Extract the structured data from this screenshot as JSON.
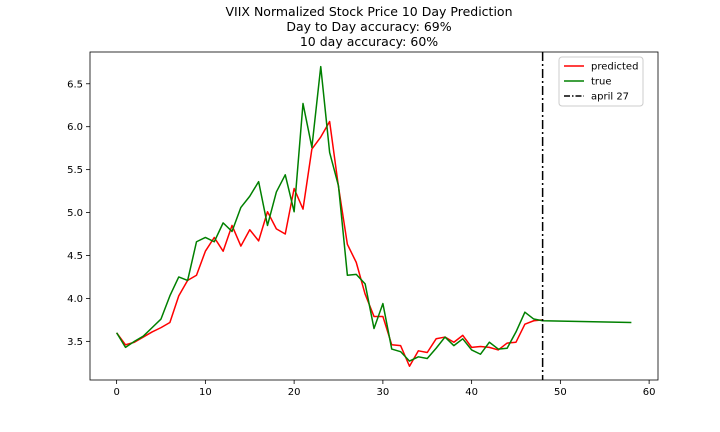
{
  "chart_data": {
    "type": "line",
    "title": "VIIX Normalized Stock Price 10 Day Prediction",
    "subtitle_lines": [
      "Day to Day accuracy: 69%",
      "10 day accuracy: 60%"
    ],
    "xlabel": "",
    "ylabel": "",
    "xlim": [
      -3,
      61
    ],
    "ylim": [
      3.05,
      6.87
    ],
    "x_ticks": [
      0,
      10,
      20,
      30,
      40,
      50,
      60
    ],
    "y_ticks": [
      3.5,
      4.0,
      4.5,
      5.0,
      5.5,
      6.0,
      6.5
    ],
    "grid": false,
    "legend_position": "top-right",
    "series": [
      {
        "name": "predicted",
        "color": "#ff0000",
        "x": [
          0,
          1,
          2,
          3,
          4,
          5,
          6,
          7,
          8,
          9,
          10,
          11,
          12,
          13,
          14,
          15,
          16,
          17,
          18,
          19,
          20,
          21,
          22,
          23,
          24,
          25,
          26,
          27,
          28,
          29,
          30,
          31,
          32,
          33,
          34,
          35,
          36,
          37,
          38,
          39,
          40,
          41,
          42,
          43,
          44,
          45,
          46,
          47,
          48
        ],
        "y": [
          3.6,
          3.46,
          3.49,
          3.55,
          3.61,
          3.66,
          3.72,
          4.03,
          4.21,
          4.27,
          4.55,
          4.71,
          4.55,
          4.85,
          4.61,
          4.8,
          4.67,
          5.01,
          4.81,
          4.75,
          5.28,
          5.04,
          5.74,
          5.88,
          6.06,
          5.3,
          4.63,
          4.42,
          4.05,
          3.79,
          3.79,
          3.46,
          3.45,
          3.21,
          3.39,
          3.37,
          3.53,
          3.55,
          3.49,
          3.57,
          3.43,
          3.44,
          3.43,
          3.4,
          3.48,
          3.49,
          3.7,
          3.74,
          3.75
        ]
      },
      {
        "name": "true",
        "color": "#008000",
        "x": [
          0,
          1,
          2,
          3,
          4,
          5,
          6,
          7,
          8,
          9,
          10,
          11,
          12,
          13,
          14,
          15,
          16,
          17,
          18,
          19,
          20,
          21,
          22,
          23,
          24,
          25,
          26,
          27,
          28,
          29,
          30,
          31,
          32,
          33,
          34,
          35,
          36,
          37,
          38,
          39,
          40,
          41,
          42,
          43,
          44,
          45,
          46,
          47,
          48,
          58
        ],
        "y": [
          3.6,
          3.43,
          3.5,
          3.56,
          3.66,
          3.76,
          4.03,
          4.25,
          4.21,
          4.66,
          4.71,
          4.66,
          4.88,
          4.78,
          5.06,
          5.19,
          5.36,
          4.85,
          5.24,
          5.44,
          5.01,
          6.27,
          5.76,
          6.7,
          5.7,
          5.31,
          4.27,
          4.28,
          4.17,
          3.65,
          3.94,
          3.41,
          3.38,
          3.27,
          3.32,
          3.3,
          3.42,
          3.55,
          3.45,
          3.53,
          3.4,
          3.35,
          3.49,
          3.41,
          3.42,
          3.61,
          3.84,
          3.76,
          3.74,
          3.72
        ]
      }
    ],
    "vline": {
      "name": "april 27",
      "x": 48,
      "color": "#000000",
      "style": "dashdot"
    }
  }
}
